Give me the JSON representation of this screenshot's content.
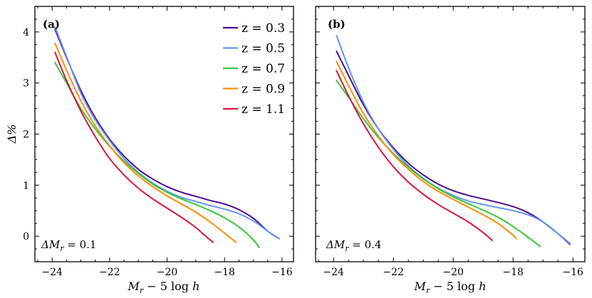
{
  "chart_data": [
    {
      "type": "line",
      "panel_label": "(a)",
      "annotation": "ΔM_r = 0.1",
      "xlabel": "M_r − 5 log h",
      "ylabel": "Δ%",
      "xlim": [
        -24.6,
        -15.6
      ],
      "ylim": [
        -0.5,
        4.5
      ],
      "xticks": [
        -24,
        -22,
        -20,
        -18,
        -16
      ],
      "yticks": [
        0,
        1,
        2,
        3,
        4
      ],
      "xticklabels": [
        "−24",
        "−22",
        "−20",
        "−18",
        "−16"
      ],
      "yticklabels": [
        "0",
        "1",
        "2",
        "3",
        "4"
      ],
      "legend_position": "top-right",
      "series": [
        {
          "name": "z = 0.3",
          "color": "#4b0f8c",
          "x": [
            -23.9,
            -23.5,
            -23.0,
            -22.5,
            -22.0,
            -21.5,
            -21.0,
            -20.5,
            -20.0,
            -19.5,
            -19.0,
            -18.5,
            -18.0,
            -17.5,
            -17.0,
            -16.5,
            -16.1
          ],
          "y": [
            4.05,
            3.5,
            2.85,
            2.32,
            1.9,
            1.57,
            1.31,
            1.12,
            0.97,
            0.86,
            0.78,
            0.7,
            0.63,
            0.52,
            0.35,
            0.1,
            -0.05
          ]
        },
        {
          "name": "z = 0.5",
          "color": "#6495ed",
          "x": [
            -23.9,
            -23.5,
            -23.0,
            -22.5,
            -22.0,
            -21.5,
            -21.0,
            -20.5,
            -20.0,
            -19.5,
            -19.0,
            -18.5,
            -18.0,
            -17.5,
            -17.0,
            -16.5,
            -16.1
          ],
          "y": [
            4.1,
            3.52,
            2.8,
            2.28,
            1.87,
            1.52,
            1.25,
            1.04,
            0.88,
            0.76,
            0.68,
            0.6,
            0.53,
            0.44,
            0.3,
            0.1,
            -0.05
          ]
        },
        {
          "name": "z = 0.7",
          "color": "#3cc43c",
          "x": [
            -23.9,
            -23.5,
            -23.0,
            -22.5,
            -22.0,
            -21.5,
            -21.0,
            -20.5,
            -20.0,
            -19.5,
            -19.0,
            -18.5,
            -18.0,
            -17.5,
            -17.0,
            -16.8
          ],
          "y": [
            3.4,
            3.0,
            2.5,
            2.1,
            1.76,
            1.47,
            1.23,
            1.02,
            0.86,
            0.73,
            0.62,
            0.5,
            0.36,
            0.18,
            -0.07,
            -0.22
          ]
        },
        {
          "name": "z = 0.9",
          "color": "#ff8c00",
          "x": [
            -23.9,
            -23.5,
            -23.0,
            -22.5,
            -22.0,
            -21.5,
            -21.0,
            -20.5,
            -20.0,
            -19.5,
            -19.0,
            -18.5,
            -18.0,
            -17.6
          ],
          "y": [
            3.78,
            3.25,
            2.65,
            2.16,
            1.77,
            1.44,
            1.18,
            0.97,
            0.79,
            0.63,
            0.47,
            0.28,
            0.06,
            -0.12
          ]
        },
        {
          "name": "z = 1.1",
          "color": "#dc143c",
          "x": [
            -23.9,
            -23.5,
            -23.0,
            -22.5,
            -22.0,
            -21.5,
            -21.0,
            -20.5,
            -20.0,
            -19.5,
            -19.0,
            -18.7,
            -18.4
          ],
          "y": [
            3.6,
            3.05,
            2.45,
            1.95,
            1.52,
            1.2,
            0.94,
            0.73,
            0.55,
            0.37,
            0.17,
            0.02,
            -0.12
          ]
        }
      ]
    },
    {
      "type": "line",
      "panel_label": "(b)",
      "annotation": "ΔM_r = 0.4",
      "xlabel": "M_r − 5 log h",
      "ylabel": "",
      "xlim": [
        -24.6,
        -15.6
      ],
      "ylim": [
        -0.5,
        4.5
      ],
      "xticks": [
        -24,
        -22,
        -20,
        -18,
        -16
      ],
      "yticks": [
        0,
        1,
        2,
        3,
        4
      ],
      "xticklabels": [
        "−24",
        "−22",
        "−20",
        "−18",
        "−16"
      ],
      "yticklabels": [],
      "series": [
        {
          "name": "z = 0.3",
          "color": "#4b0f8c",
          "x": [
            -23.9,
            -23.5,
            -23.0,
            -22.5,
            -22.0,
            -21.5,
            -21.0,
            -20.5,
            -20.0,
            -19.5,
            -19.0,
            -18.5,
            -18.0,
            -17.5,
            -17.0,
            -16.5,
            -16.1
          ],
          "y": [
            3.62,
            3.15,
            2.57,
            2.1,
            1.73,
            1.43,
            1.2,
            1.02,
            0.89,
            0.8,
            0.73,
            0.66,
            0.58,
            0.46,
            0.28,
            0.05,
            -0.15
          ]
        },
        {
          "name": "z = 0.5",
          "color": "#6495ed",
          "x": [
            -23.9,
            -23.5,
            -23.0,
            -22.5,
            -22.0,
            -21.5,
            -21.0,
            -20.5,
            -20.0,
            -19.5,
            -19.0,
            -18.5,
            -18.0,
            -17.5,
            -17.0,
            -16.5,
            -16.1
          ],
          "y": [
            3.93,
            3.3,
            2.62,
            2.1,
            1.7,
            1.38,
            1.13,
            0.94,
            0.8,
            0.69,
            0.62,
            0.56,
            0.5,
            0.42,
            0.28,
            0.05,
            -0.17
          ]
        },
        {
          "name": "z = 0.7",
          "color": "#3cc43c",
          "x": [
            -23.9,
            -23.5,
            -23.0,
            -22.5,
            -22.0,
            -21.5,
            -21.0,
            -20.5,
            -20.0,
            -19.5,
            -19.0,
            -18.5,
            -18.0,
            -17.5,
            -17.1
          ],
          "y": [
            3.05,
            2.72,
            2.3,
            1.93,
            1.62,
            1.35,
            1.12,
            0.93,
            0.77,
            0.64,
            0.51,
            0.37,
            0.19,
            -0.02,
            -0.2
          ]
        },
        {
          "name": "z = 0.9",
          "color": "#ff8c00",
          "x": [
            -23.9,
            -23.5,
            -23.0,
            -22.5,
            -22.0,
            -21.5,
            -21.0,
            -20.5,
            -20.0,
            -19.5,
            -19.0,
            -18.5,
            -18.0,
            -17.9
          ],
          "y": [
            3.42,
            2.95,
            2.4,
            1.96,
            1.6,
            1.31,
            1.07,
            0.88,
            0.72,
            0.57,
            0.42,
            0.25,
            0.02,
            -0.05
          ]
        },
        {
          "name": "z = 1.1",
          "color": "#dc143c",
          "x": [
            -23.9,
            -23.5,
            -23.0,
            -22.5,
            -22.0,
            -21.5,
            -21.0,
            -20.5,
            -20.0,
            -19.5,
            -19.0,
            -18.7
          ],
          "y": [
            3.24,
            2.75,
            2.2,
            1.74,
            1.36,
            1.06,
            0.82,
            0.62,
            0.45,
            0.28,
            0.07,
            -0.08
          ]
        }
      ]
    }
  ]
}
